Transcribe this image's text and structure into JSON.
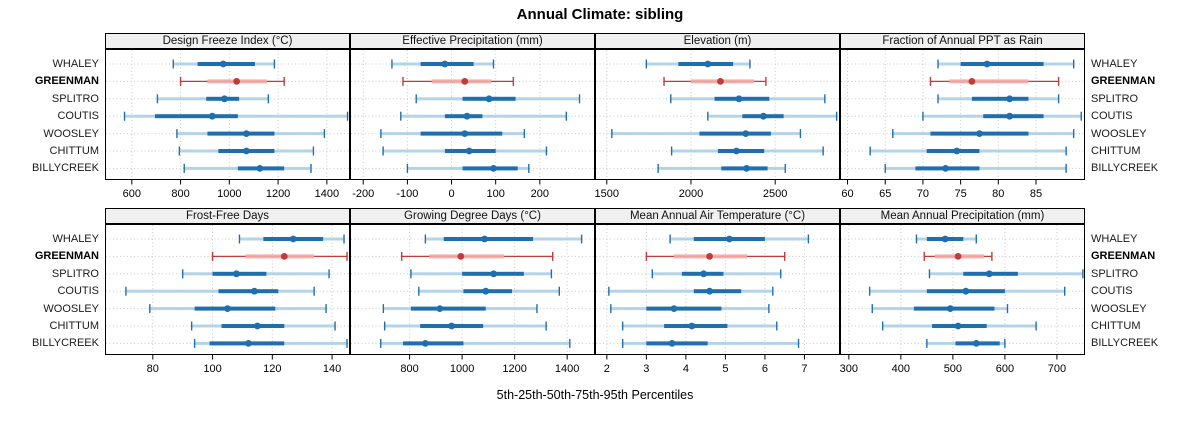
{
  "title": "Annual Climate: sibling",
  "xlabel": "5th-25th-50th-75th-95th Percentiles",
  "percentile_labels": [
    "5th",
    "25th",
    "50th",
    "75th",
    "95th"
  ],
  "sites": [
    "WHALEY",
    "GREENMAN",
    "SPLITRO",
    "COUTIS",
    "WOOSLEY",
    "CHITTUM",
    "BILLYCREEK"
  ],
  "highlight_site": "GREENMAN",
  "colors": {
    "series": "#1f6fae",
    "series_light": "#a9cde4",
    "highlight": "#c13b3a",
    "highlight_light": "#f0aaa6",
    "grid": "#c9c9c9",
    "header_bg": "#f0f0f0",
    "border": "#000000"
  },
  "chart_data": [
    {
      "type": "dotplot",
      "title": "Design Freeze Index (°C)",
      "xlim": [
        490,
        1495
      ],
      "ticks": [
        600,
        800,
        1000,
        1200,
        1400
      ],
      "series": [
        {
          "name": "WHALEY",
          "percentiles": [
            770,
            870,
            975,
            1105,
            1185
          ]
        },
        {
          "name": "GREENMAN",
          "percentiles": [
            800,
            910,
            1030,
            1155,
            1225
          ]
        },
        {
          "name": "SPLITRO",
          "percentiles": [
            705,
            905,
            980,
            1040,
            1160
          ]
        },
        {
          "name": "COUTIS",
          "percentiles": [
            570,
            695,
            930,
            1035,
            1485
          ]
        },
        {
          "name": "WOOSLEY",
          "percentiles": [
            785,
            910,
            1070,
            1185,
            1390
          ]
        },
        {
          "name": "CHITTUM",
          "percentiles": [
            795,
            955,
            1070,
            1185,
            1345
          ]
        },
        {
          "name": "BILLYCREEK",
          "percentiles": [
            815,
            1035,
            1125,
            1225,
            1335
          ]
        }
      ]
    },
    {
      "type": "dotplot",
      "title": "Effective Precipitation (mm)",
      "xlim": [
        -230,
        325
      ],
      "ticks": [
        -200,
        -100,
        0,
        100,
        200
      ],
      "series": [
        {
          "name": "WHALEY",
          "percentiles": [
            -135,
            -70,
            -15,
            50,
            95
          ]
        },
        {
          "name": "GREENMAN",
          "percentiles": [
            -110,
            -45,
            30,
            90,
            140
          ]
        },
        {
          "name": "SPLITRO",
          "percentiles": [
            -80,
            25,
            85,
            145,
            290
          ]
        },
        {
          "name": "COUTIS",
          "percentiles": [
            -115,
            -15,
            35,
            70,
            260
          ]
        },
        {
          "name": "WOOSLEY",
          "percentiles": [
            -160,
            -70,
            30,
            115,
            165
          ]
        },
        {
          "name": "CHITTUM",
          "percentiles": [
            -155,
            -15,
            40,
            100,
            215
          ]
        },
        {
          "name": "BILLYCREEK",
          "percentiles": [
            -100,
            25,
            95,
            150,
            175
          ]
        }
      ]
    },
    {
      "type": "dotplot",
      "title": "Elevation (m)",
      "xlim": [
        1430,
        2885
      ],
      "ticks": [
        1500,
        2000,
        2500
      ],
      "series": [
        {
          "name": "WHALEY",
          "percentiles": [
            1735,
            1925,
            2100,
            2250,
            2350
          ]
        },
        {
          "name": "GREENMAN",
          "percentiles": [
            1840,
            2000,
            2175,
            2375,
            2445
          ]
        },
        {
          "name": "SPLITRO",
          "percentiles": [
            1880,
            2140,
            2285,
            2465,
            2795
          ]
        },
        {
          "name": "COUTIS",
          "percentiles": [
            2100,
            2305,
            2430,
            2550,
            2865
          ]
        },
        {
          "name": "WOOSLEY",
          "percentiles": [
            1530,
            2050,
            2325,
            2475,
            2650
          ]
        },
        {
          "name": "CHITTUM",
          "percentiles": [
            1885,
            2160,
            2270,
            2435,
            2785
          ]
        },
        {
          "name": "BILLYCREEK",
          "percentiles": [
            1805,
            2180,
            2330,
            2455,
            2560
          ]
        }
      ]
    },
    {
      "type": "dotplot",
      "title": "Fraction of Annual PPT as Rain",
      "xlim": [
        59,
        91.5
      ],
      "ticks": [
        60,
        65,
        70,
        75,
        80,
        85
      ],
      "series": [
        {
          "name": "WHALEY",
          "percentiles": [
            72,
            75,
            78.5,
            86,
            90
          ]
        },
        {
          "name": "GREENMAN",
          "percentiles": [
            71,
            73.5,
            76.5,
            84,
            88
          ]
        },
        {
          "name": "SPLITRO",
          "percentiles": [
            72,
            76.5,
            81.5,
            84,
            88
          ]
        },
        {
          "name": "COUTIS",
          "percentiles": [
            70,
            78,
            81.5,
            86,
            91
          ]
        },
        {
          "name": "WOOSLEY",
          "percentiles": [
            66,
            71,
            77.5,
            84,
            90
          ]
        },
        {
          "name": "CHITTUM",
          "percentiles": [
            63,
            70.5,
            74.5,
            77.5,
            89
          ]
        },
        {
          "name": "BILLYCREEK",
          "percentiles": [
            65,
            69,
            73,
            77.5,
            89
          ]
        }
      ]
    },
    {
      "type": "dotplot",
      "title": "Frost-Free Days",
      "xlim": [
        64,
        146
      ],
      "ticks": [
        80,
        100,
        120,
        140
      ],
      "series": [
        {
          "name": "WHALEY",
          "percentiles": [
            109,
            117,
            127,
            137,
            144
          ]
        },
        {
          "name": "GREENMAN",
          "percentiles": [
            100,
            111,
            124,
            134,
            145
          ]
        },
        {
          "name": "SPLITRO",
          "percentiles": [
            90,
            100,
            108,
            118,
            139
          ]
        },
        {
          "name": "COUTIS",
          "percentiles": [
            71,
            102,
            114,
            122,
            134
          ]
        },
        {
          "name": "WOOSLEY",
          "percentiles": [
            79,
            94,
            105,
            121,
            138
          ]
        },
        {
          "name": "CHITTUM",
          "percentiles": [
            93,
            103,
            115,
            124,
            141
          ]
        },
        {
          "name": "BILLYCREEK",
          "percentiles": [
            94,
            99,
            112,
            124,
            145
          ]
        }
      ]
    },
    {
      "type": "dotplot",
      "title": "Growing Degree Days (°C)",
      "xlim": [
        573,
        1506
      ],
      "ticks": [
        800,
        1000,
        1200,
        1400
      ],
      "series": [
        {
          "name": "WHALEY",
          "percentiles": [
            860,
            930,
            1085,
            1270,
            1455
          ]
        },
        {
          "name": "GREENMAN",
          "percentiles": [
            770,
            875,
            995,
            1160,
            1345
          ]
        },
        {
          "name": "SPLITRO",
          "percentiles": [
            805,
            1000,
            1120,
            1235,
            1340
          ]
        },
        {
          "name": "COUTIS",
          "percentiles": [
            835,
            1005,
            1090,
            1190,
            1370
          ]
        },
        {
          "name": "WOOSLEY",
          "percentiles": [
            700,
            805,
            915,
            1090,
            1285
          ]
        },
        {
          "name": "CHITTUM",
          "percentiles": [
            705,
            840,
            960,
            1080,
            1320
          ]
        },
        {
          "name": "BILLYCREEK",
          "percentiles": [
            690,
            775,
            860,
            1005,
            1410
          ]
        }
      ]
    },
    {
      "type": "dotplot",
      "title": "Mean Annual Air Temperature (°C)",
      "xlim": [
        1.7,
        7.9
      ],
      "ticks": [
        2,
        3,
        4,
        5,
        6,
        7
      ],
      "series": [
        {
          "name": "WHALEY",
          "percentiles": [
            3.6,
            4.2,
            5.1,
            6.0,
            7.1
          ]
        },
        {
          "name": "GREENMAN",
          "percentiles": [
            3.0,
            3.7,
            4.6,
            5.55,
            6.5
          ]
        },
        {
          "name": "SPLITRO",
          "percentiles": [
            3.15,
            3.9,
            4.45,
            4.95,
            6.4
          ]
        },
        {
          "name": "COUTIS",
          "percentiles": [
            2.05,
            4.2,
            4.6,
            5.4,
            6.2
          ]
        },
        {
          "name": "WOOSLEY",
          "percentiles": [
            2.1,
            3.0,
            3.7,
            4.9,
            6.1
          ]
        },
        {
          "name": "CHITTUM",
          "percentiles": [
            2.4,
            3.45,
            4.15,
            5.05,
            6.3
          ]
        },
        {
          "name": "BILLYCREEK",
          "percentiles": [
            2.4,
            3.0,
            3.65,
            4.55,
            6.85
          ]
        }
      ]
    },
    {
      "type": "dotplot",
      "title": "Mean Annual Precipitation (mm)",
      "xlim": [
        283,
        754
      ],
      "ticks": [
        300,
        400,
        500,
        600,
        700
      ],
      "series": [
        {
          "name": "WHALEY",
          "percentiles": [
            430,
            450,
            485,
            520,
            545
          ]
        },
        {
          "name": "GREENMAN",
          "percentiles": [
            445,
            465,
            510,
            560,
            575
          ]
        },
        {
          "name": "SPLITRO",
          "percentiles": [
            455,
            520,
            570,
            625,
            750
          ]
        },
        {
          "name": "COUTIS",
          "percentiles": [
            340,
            450,
            525,
            600,
            715
          ]
        },
        {
          "name": "WOOSLEY",
          "percentiles": [
            345,
            425,
            495,
            580,
            605
          ]
        },
        {
          "name": "CHITTUM",
          "percentiles": [
            365,
            460,
            510,
            565,
            660
          ]
        },
        {
          "name": "BILLYCREEK",
          "percentiles": [
            450,
            505,
            545,
            590,
            600
          ]
        }
      ]
    }
  ]
}
